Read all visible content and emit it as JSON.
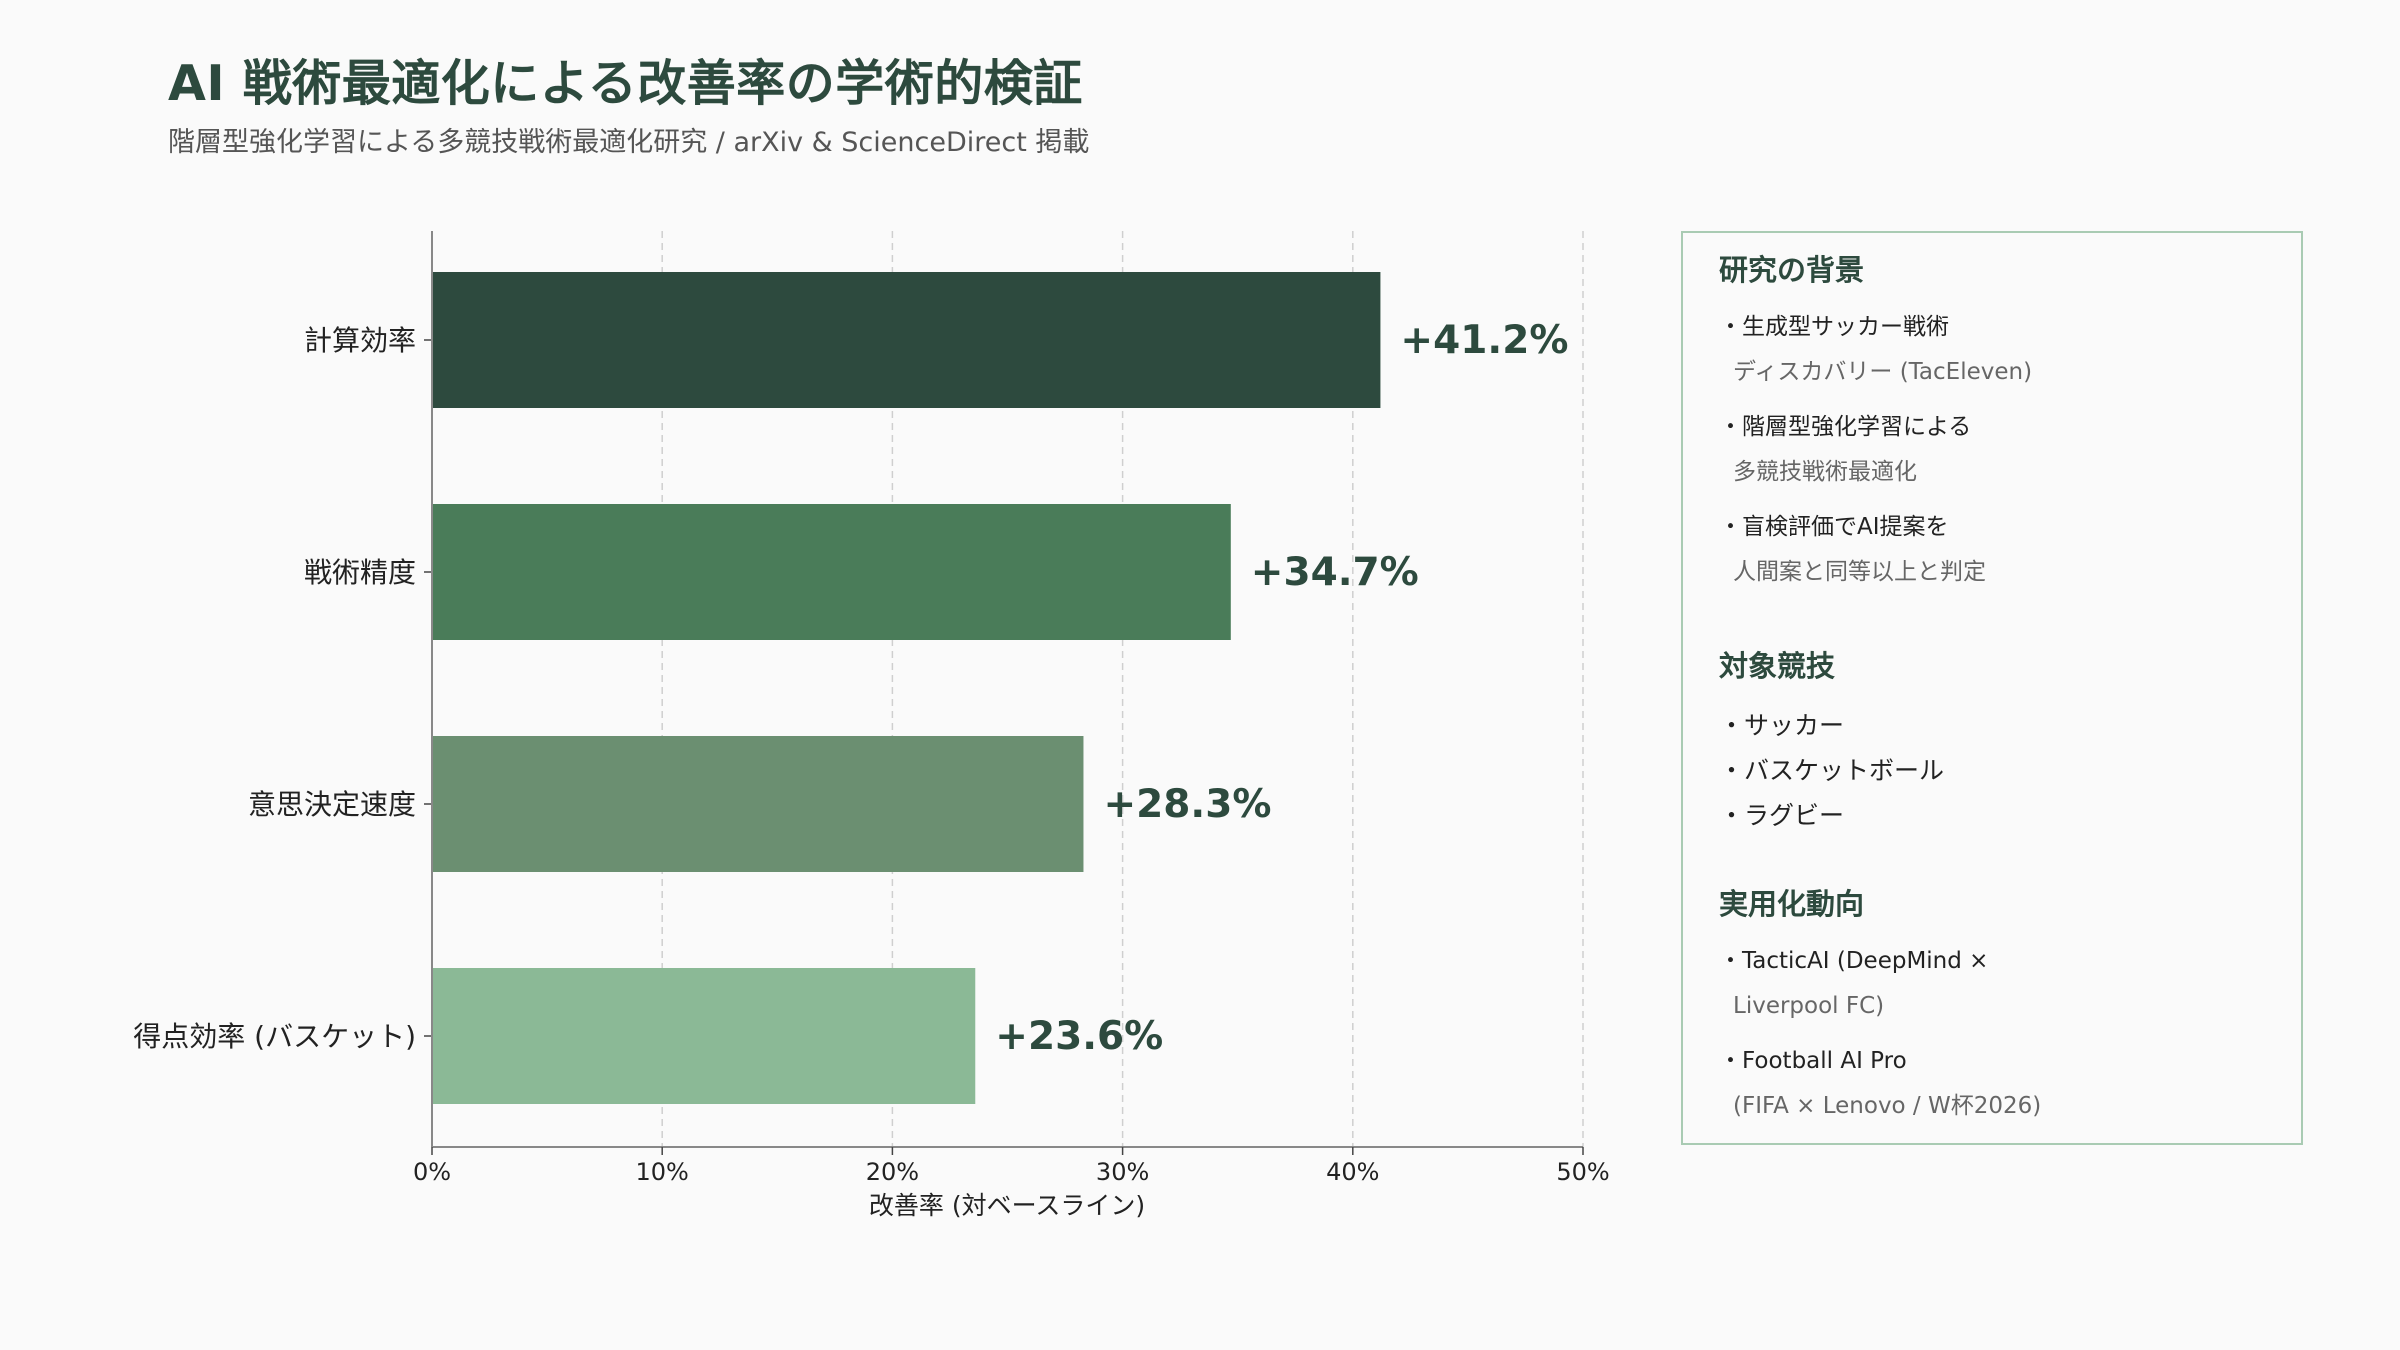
{
  "title": "AI 戦術最適化による改善率の学術的検証",
  "subtitle": "階層型強化学習による多競技戦術最適化研究 / arXiv & ScienceDirect 掲載",
  "chart_data": {
    "type": "bar",
    "orientation": "horizontal",
    "categories": [
      "計算効率",
      "戦術精度",
      "意思決定速度",
      "得点効率 (バスケット)"
    ],
    "values": [
      41.2,
      34.7,
      28.3,
      23.6
    ],
    "value_labels": [
      "+41.2%",
      "+34.7%",
      "+28.3%",
      "+23.6%"
    ],
    "bar_colors": [
      "#2d4a3e",
      "#4a7c59",
      "#6b8f71",
      "#8bb996"
    ],
    "xlabel": "改善率 (対ベースライン)",
    "ylabel": "",
    "xlim": [
      0,
      50
    ],
    "xticks": [
      0,
      10,
      20,
      30,
      40,
      50
    ],
    "xtick_labels": [
      "0%",
      "10%",
      "20%",
      "30%",
      "40%",
      "50%"
    ],
    "grid": "vertical dashed"
  },
  "panel": {
    "background_heading": "研究の背景",
    "background_items": [
      {
        "main": "生成型サッカー戦術",
        "sub": "ディスカバリー (TacEleven)"
      },
      {
        "main": "階層型強化学習による",
        "sub": "多競技戦術最適化"
      },
      {
        "main": "盲検評価でAI提案を",
        "sub": "人間案と同等以上と判定"
      }
    ],
    "sports_heading": "対象競技",
    "sports_items": [
      "サッカー",
      "バスケットボール",
      "ラグビー"
    ],
    "trends_heading": "実用化動向",
    "trends_items": [
      {
        "main": "TacticAI (DeepMind ×",
        "sub": "Liverpool FC)"
      },
      {
        "main": "Football AI Pro",
        "sub": "(FIFA × Lenovo / W杯2026)"
      }
    ]
  }
}
